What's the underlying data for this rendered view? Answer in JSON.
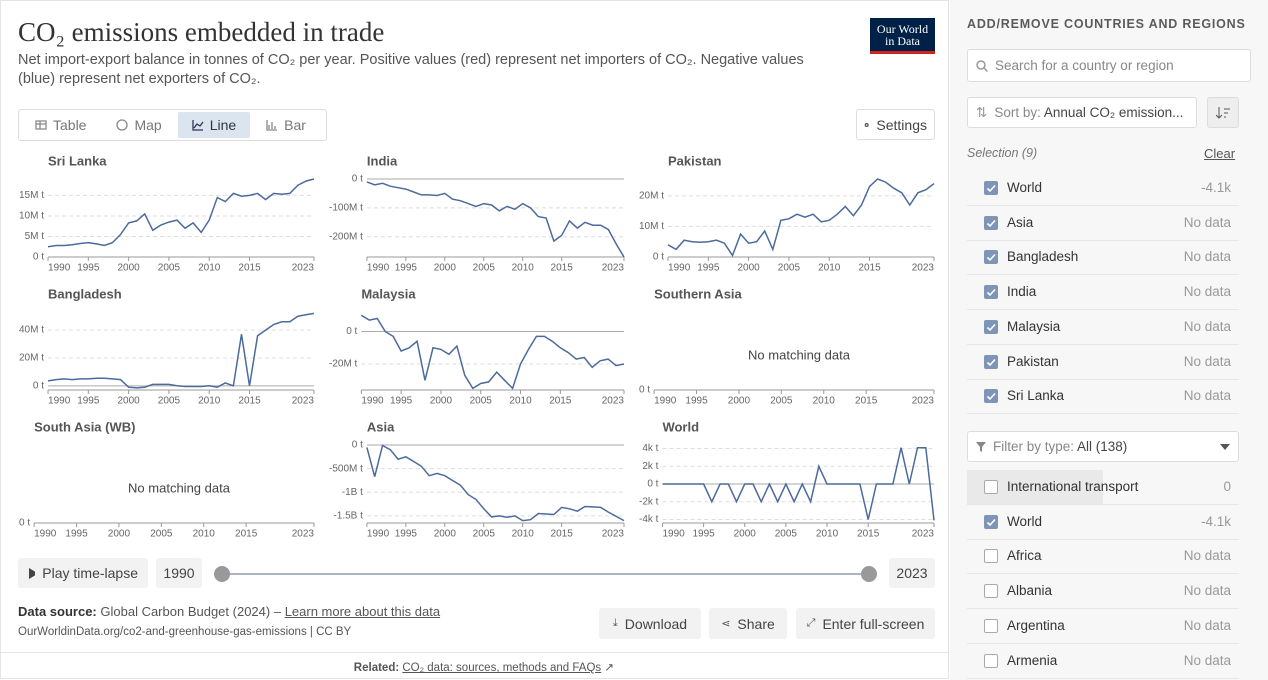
{
  "header": {
    "title": "CO₂ emissions embedded in trade",
    "subtitle": "Net import-export balance in tonnes of CO₂ per year. Positive values (red) represent net importers of CO₂. Negative values (blue) represent net exporters of CO₂.",
    "logo": [
      "Our World",
      "in Data"
    ]
  },
  "tabs": [
    {
      "label": "Table",
      "active": false
    },
    {
      "label": "Map",
      "active": false
    },
    {
      "label": "Line",
      "active": true
    },
    {
      "label": "Bar",
      "active": false
    }
  ],
  "settings": "Settings",
  "chart_data": [
    {
      "type": "line",
      "title": "Sri Lanka",
      "color": "#4c6a9c",
      "x": [
        1990,
        1991,
        1992,
        1993,
        1994,
        1995,
        1996,
        1997,
        1998,
        1999,
        2000,
        2001,
        2002,
        2003,
        2004,
        2005,
        2006,
        2007,
        2008,
        2009,
        2010,
        2011,
        2012,
        2013,
        2014,
        2015,
        2016,
        2017,
        2018,
        2019,
        2020,
        2021,
        2022,
        2023
      ],
      "values": [
        2500000,
        2800000,
        2800000,
        3000000,
        3300000,
        3500000,
        3200000,
        2800000,
        3500000,
        5500000,
        8300000,
        8800000,
        10500000,
        6500000,
        7800000,
        8500000,
        9000000,
        7000000,
        8300000,
        6000000,
        9000000,
        14500000,
        13500000,
        15500000,
        14800000,
        15000000,
        15500000,
        14000000,
        15500000,
        15300000,
        15500000,
        17500000,
        18500000,
        19000000
      ],
      "xlim": [
        1990,
        2023
      ],
      "xticks": [
        1990,
        1995,
        2000,
        2005,
        2010,
        2015,
        2023
      ],
      "ylim": [
        0,
        19000000
      ],
      "yticks": [
        {
          "value": 0,
          "label": "0 t"
        },
        {
          "value": 5000000,
          "label": "5M t"
        },
        {
          "value": 10000000,
          "label": "10M t"
        },
        {
          "value": 15000000,
          "label": "15M t"
        }
      ],
      "grid": true
    },
    {
      "type": "line",
      "title": "India",
      "color": "#4c6a9c",
      "x": [
        1990,
        1991,
        1992,
        1993,
        1994,
        1995,
        1996,
        1997,
        1998,
        1999,
        2000,
        2001,
        2002,
        2003,
        2004,
        2005,
        2006,
        2007,
        2008,
        2009,
        2010,
        2011,
        2012,
        2013,
        2014,
        2015,
        2016,
        2017,
        2018,
        2019,
        2020,
        2021,
        2022,
        2023
      ],
      "values": [
        -10000000,
        -20000000,
        -15000000,
        -25000000,
        -30000000,
        -35000000,
        -45000000,
        -55000000,
        -55000000,
        -57000000,
        -50000000,
        -70000000,
        -75000000,
        -85000000,
        -95000000,
        -85000000,
        -90000000,
        -110000000,
        -95000000,
        -105000000,
        -85000000,
        -100000000,
        -130000000,
        -135000000,
        -215000000,
        -195000000,
        -145000000,
        -170000000,
        -150000000,
        -160000000,
        -160000000,
        -175000000,
        -225000000,
        -270000000
      ],
      "xlim": [
        1990,
        2023
      ],
      "xticks": [
        1990,
        1995,
        2000,
        2005,
        2010,
        2015,
        2023
      ],
      "ylim": [
        -270000000,
        0
      ],
      "yticks": [
        {
          "value": 0,
          "label": "0 t"
        },
        {
          "value": -100000000,
          "label": "-100M t"
        },
        {
          "value": -200000000,
          "label": "-200M t"
        }
      ],
      "grid": true
    },
    {
      "type": "line",
      "title": "Pakistan",
      "color": "#4c6a9c",
      "x": [
        1990,
        1991,
        1992,
        1993,
        1994,
        1995,
        1996,
        1997,
        1998,
        1999,
        2000,
        2001,
        2002,
        2003,
        2004,
        2005,
        2006,
        2007,
        2008,
        2009,
        2010,
        2011,
        2012,
        2013,
        2014,
        2015,
        2016,
        2017,
        2018,
        2019,
        2020,
        2021,
        2022,
        2023
      ],
      "values": [
        4000000,
        2500000,
        5500000,
        5000000,
        4800000,
        5000000,
        5500000,
        4500000,
        500000,
        7500000,
        4500000,
        5000000,
        8500000,
        2500000,
        12000000,
        12500000,
        14000000,
        13000000,
        14000000,
        11500000,
        12000000,
        14000000,
        16500000,
        13500000,
        17000000,
        23000000,
        25500000,
        24500000,
        22500000,
        21000000,
        17000000,
        21000000,
        22000000,
        24000000
      ],
      "xlim": [
        1990,
        2023
      ],
      "xticks": [
        1990,
        1995,
        2000,
        2005,
        2010,
        2015,
        2023
      ],
      "ylim": [
        0,
        25500000
      ],
      "yticks": [
        {
          "value": 0,
          "label": "0 t"
        },
        {
          "value": 10000000,
          "label": "10M t"
        },
        {
          "value": 20000000,
          "label": "20M t"
        }
      ],
      "grid": true
    },
    {
      "type": "line",
      "title": "Bangladesh",
      "color": "#4c6a9c",
      "x": [
        1990,
        1991,
        1992,
        1993,
        1994,
        1995,
        1996,
        1997,
        1998,
        1999,
        2000,
        2001,
        2002,
        2003,
        2004,
        2005,
        2006,
        2007,
        2008,
        2009,
        2010,
        2011,
        2012,
        2013,
        2014,
        2015,
        2016,
        2017,
        2018,
        2019,
        2020,
        2021,
        2022,
        2023
      ],
      "values": [
        3500000,
        4500000,
        5000000,
        4500000,
        5000000,
        5000000,
        5500000,
        5500000,
        5000000,
        4500000,
        -1000000,
        -1500000,
        -1000000,
        1000000,
        1000000,
        1000000,
        0,
        -500000,
        -500000,
        -500000,
        0,
        -1000000,
        2000000,
        0,
        37000000,
        0,
        36000000,
        40000000,
        44000000,
        46000000,
        46000000,
        50000000,
        51000000,
        52000000
      ],
      "xlim": [
        1990,
        2023
      ],
      "xticks": [
        1990,
        1995,
        2000,
        2005,
        2010,
        2015,
        2023
      ],
      "ylim": [
        -3000000,
        53000000
      ],
      "yticks": [
        {
          "value": 0,
          "label": "0 t"
        },
        {
          "value": 20000000,
          "label": "20M t"
        },
        {
          "value": 40000000,
          "label": "40M t"
        }
      ],
      "grid": true
    },
    {
      "type": "line",
      "title": "Malaysia",
      "color": "#4c6a9c",
      "x": [
        1990,
        1991,
        1992,
        1993,
        1994,
        1995,
        1996,
        1997,
        1998,
        1999,
        2000,
        2001,
        2002,
        2003,
        2004,
        2005,
        2006,
        2007,
        2008,
        2009,
        2010,
        2011,
        2012,
        2013,
        2014,
        2015,
        2016,
        2017,
        2018,
        2019,
        2020,
        2021,
        2022,
        2023
      ],
      "values": [
        10000000,
        7000000,
        8000000,
        0,
        -3000000,
        -12000000,
        -10000000,
        -6000000,
        -30000000,
        -10000000,
        -11000000,
        -14000000,
        -9000000,
        -27000000,
        -35000000,
        -32000000,
        -31000000,
        -25000000,
        -30000000,
        -35000000,
        -20000000,
        -11000000,
        -3000000,
        -3000000,
        -6000000,
        -10000000,
        -13000000,
        -17000000,
        -16000000,
        -22000000,
        -18000000,
        -17000000,
        -21000000,
        -20000000
      ],
      "xlim": [
        1990,
        2023
      ],
      "xticks": [
        1990,
        1995,
        2000,
        2005,
        2010,
        2015,
        2023
      ],
      "ylim": [
        -36000000,
        12000000
      ],
      "yticks": [
        {
          "value": 0,
          "label": "0 t"
        },
        {
          "value": -20000000,
          "label": "-20M t"
        }
      ],
      "grid": true
    },
    {
      "type": "line",
      "title": "Southern Asia",
      "annotation": "No matching data",
      "xlim": [
        1990,
        2023
      ],
      "xticks": [
        1990,
        1995,
        2000,
        2005,
        2010,
        2015,
        2023
      ],
      "yticks": [
        {
          "value": 0,
          "label": "0 t"
        }
      ],
      "grid": true
    },
    {
      "type": "line",
      "title": "South Asia (WB)",
      "annotation": "No matching data",
      "xlim": [
        1990,
        2023
      ],
      "xticks": [
        1990,
        1995,
        2000,
        2005,
        2010,
        2015,
        2023
      ],
      "yticks": [
        {
          "value": 0,
          "label": "0 t"
        }
      ],
      "grid": true
    },
    {
      "type": "line",
      "title": "Asia",
      "color": "#4c6a9c",
      "x": [
        1990,
        1991,
        1992,
        1993,
        1994,
        1995,
        1996,
        1997,
        1998,
        1999,
        2000,
        2001,
        2002,
        2003,
        2004,
        2005,
        2006,
        2007,
        2008,
        2009,
        2010,
        2011,
        2012,
        2013,
        2014,
        2015,
        2016,
        2017,
        2018,
        2019,
        2020,
        2021,
        2022,
        2023
      ],
      "values": [
        -50000000,
        -670000000,
        -10000000,
        -100000000,
        -300000000,
        -250000000,
        -350000000,
        -450000000,
        -650000000,
        -600000000,
        -650000000,
        -750000000,
        -850000000,
        -1050000000,
        -1150000000,
        -1350000000,
        -1520000000,
        -1500000000,
        -1530000000,
        -1500000000,
        -1600000000,
        -1580000000,
        -1450000000,
        -1460000000,
        -1470000000,
        -1320000000,
        -1350000000,
        -1400000000,
        -1300000000,
        -1310000000,
        -1320000000,
        -1420000000,
        -1510000000,
        -1600000000
      ],
      "xlim": [
        1990,
        2023
      ],
      "xticks": [
        1990,
        1995,
        2000,
        2005,
        2010,
        2015,
        2023
      ],
      "ylim": [
        -1650000000,
        0
      ],
      "yticks": [
        {
          "value": 0,
          "label": "0 t"
        },
        {
          "value": -500000000,
          "label": "-500M t"
        },
        {
          "value": -1000000000,
          "label": "-1B t"
        },
        {
          "value": -1500000000,
          "label": "-1.5B t"
        }
      ],
      "grid": true
    },
    {
      "type": "line",
      "title": "World",
      "color": "#4c6a9c",
      "x": [
        1990,
        1991,
        1992,
        1993,
        1994,
        1995,
        1996,
        1997,
        1998,
        1999,
        2000,
        2001,
        2002,
        2003,
        2004,
        2005,
        2006,
        2007,
        2008,
        2009,
        2010,
        2011,
        2012,
        2013,
        2014,
        2015,
        2016,
        2017,
        2018,
        2019,
        2020,
        2021,
        2022,
        2023
      ],
      "values": [
        0,
        0,
        0,
        0,
        0,
        0,
        -2000,
        0,
        0,
        -2000,
        0,
        0,
        -2000,
        0,
        -2000,
        0,
        -2000,
        0,
        -2000,
        2000,
        0,
        0,
        0,
        0,
        0,
        -4000,
        0,
        0,
        0,
        4100,
        0,
        4100,
        4100,
        -4100
      ],
      "xlim": [
        1990,
        2023
      ],
      "xticks": [
        1990,
        1995,
        2000,
        2005,
        2010,
        2015,
        2023
      ],
      "ylim": [
        -4400,
        4400
      ],
      "yticks": [
        {
          "value": 4000,
          "label": "4k t"
        },
        {
          "value": 2000,
          "label": "2k t"
        },
        {
          "value": 0,
          "label": "0 t"
        },
        {
          "value": -2000,
          "label": "-2k t"
        },
        {
          "value": -4000,
          "label": "-4k t"
        }
      ],
      "grid": true
    }
  ],
  "timeline": {
    "play": "Play time-lapse",
    "start": "1990",
    "end": "2023"
  },
  "footer": {
    "source_label": "Data source:",
    "source_name": "Global Carbon Budget (2024) –",
    "source_link": "Learn more about this data",
    "url": "OurWorldinData.org/co2-and-greenhouse-gas-emissions | CC BY",
    "buttons": [
      "Download",
      "Share",
      "Enter full-screen"
    ],
    "related_label": "Related:",
    "related_link": "CO₂ data: sources, methods and FAQs"
  },
  "sidebar": {
    "heading": "ADD/REMOVE COUNTRIES AND REGIONS",
    "search_placeholder": "Search for a country or region",
    "sort_label": "Sort by:",
    "sort_value": "Annual CO₂ emission...",
    "selection_label": "Selection (9)",
    "clear": "Clear",
    "selected": [
      {
        "name": "World",
        "value": "-4.1k",
        "checked": true
      },
      {
        "name": "Asia",
        "value": "No data",
        "checked": true
      },
      {
        "name": "Bangladesh",
        "value": "No data",
        "checked": true
      },
      {
        "name": "India",
        "value": "No data",
        "checked": true
      },
      {
        "name": "Malaysia",
        "value": "No data",
        "checked": true
      },
      {
        "name": "Pakistan",
        "value": "No data",
        "checked": true
      },
      {
        "name": "Sri Lanka",
        "value": "No data",
        "checked": true
      }
    ],
    "filter_label": "Filter by type:",
    "filter_value": "All (138)",
    "items": [
      {
        "name": "International transport",
        "value": "0",
        "checked": false,
        "highlight": true
      },
      {
        "name": "World",
        "value": "-4.1k",
        "checked": true
      },
      {
        "name": "Africa",
        "value": "No data",
        "checked": false
      },
      {
        "name": "Albania",
        "value": "No data",
        "checked": false
      },
      {
        "name": "Argentina",
        "value": "No data",
        "checked": false
      },
      {
        "name": "Armenia",
        "value": "No data",
        "checked": false
      }
    ]
  }
}
